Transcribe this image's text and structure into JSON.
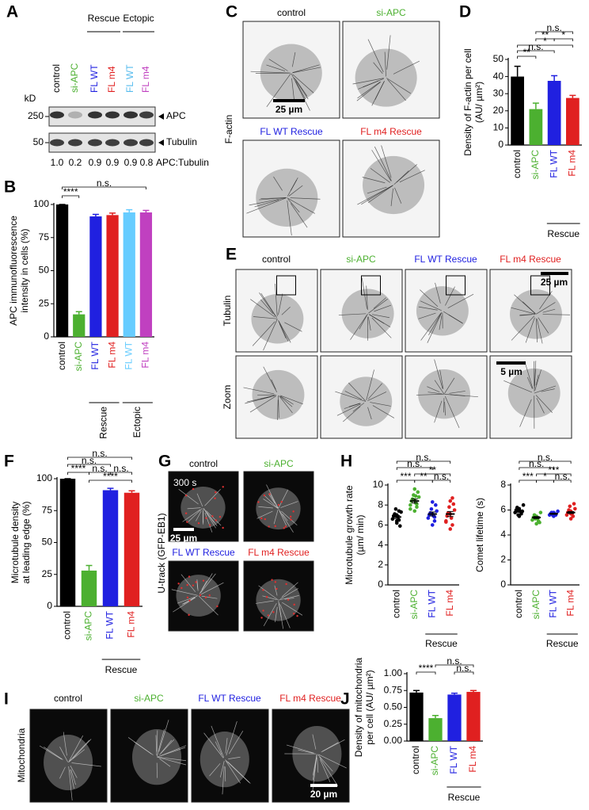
{
  "blot": {
    "panel": "A",
    "lanes": [
      "control",
      "si-APC",
      "FL WT",
      "FL m4",
      "FL WT",
      "FL m4"
    ],
    "lane_colors": [
      "#000000",
      "#4cb030",
      "#2020e0",
      "#e02020",
      "#55bbee",
      "#c040c0"
    ],
    "groups": [
      "Rescue",
      "Ectopic"
    ],
    "unit": "kD",
    "markers": [
      "250",
      "50"
    ],
    "bands": [
      "APC",
      "Tubulin"
    ],
    "ratios": [
      "1.0",
      "0.2",
      "0.9",
      "0.9",
      "0.9",
      "0.8"
    ],
    "ratio_label": "APC:Tubulin"
  },
  "micrographs": [
    {
      "panel": "C",
      "titles": [
        "control",
        "si-APC",
        "FL WT Rescue",
        "FL m4 Rescue"
      ],
      "title_colors": [
        "#000000",
        "#4cb030",
        "#2020e0",
        "#e02020"
      ],
      "row_labels": [
        "F-actin"
      ],
      "scale_bars": [
        "25 µm"
      ]
    },
    {
      "panel": "E",
      "titles": [
        "control",
        "si-APC",
        "FL WT Rescue",
        "FL m4 Rescue"
      ],
      "title_colors": [
        "#000000",
        "#4cb030",
        "#2020e0",
        "#e02020"
      ],
      "row_labels": [
        "Tubulin",
        "Zoom"
      ],
      "scale_bars": [
        "25 µm",
        "5 µm"
      ]
    },
    {
      "panel": "G",
      "titles": [
        "control",
        "si-APC",
        "FL WT Rescue",
        "FL m4 Rescue"
      ],
      "title_colors": [
        "#000000",
        "#4cb030",
        "#2020e0",
        "#e02020"
      ],
      "row_labels": [
        "U-track (GFP-EB1)"
      ],
      "timestamp": "300 s",
      "scale_bars": [
        "25 µm"
      ]
    },
    {
      "panel": "I",
      "titles": [
        "control",
        "si-APC",
        "FL WT Rescue",
        "FL m4 Rescue"
      ],
      "title_colors": [
        "#000000",
        "#4cb030",
        "#2020e0",
        "#e02020"
      ],
      "row_labels": [
        "Mitochondria"
      ],
      "scale_bars": [
        "20 µm"
      ]
    }
  ],
  "chart_data": [
    {
      "panel": "B",
      "type": "bar",
      "ylabel": [
        "APC immunofluorescence",
        "intensity in cells (%)"
      ],
      "categories": [
        "control",
        "si-APC",
        "FL WT",
        "FL m4",
        "FL WT",
        "FL m4"
      ],
      "colors": [
        "#000000",
        "#4cb030",
        "#2020e0",
        "#e02020",
        "#66ccff",
        "#c040c0"
      ],
      "values": [
        100,
        17,
        91,
        92,
        94,
        94
      ],
      "errors": [
        0,
        2,
        1.5,
        1.5,
        2,
        1.5
      ],
      "ylim": [
        0,
        100
      ],
      "yticks": [
        0,
        25,
        50,
        75,
        100
      ],
      "significance": [
        "n.s.",
        "****"
      ],
      "groups": [
        "Rescue",
        "Ectopic"
      ]
    },
    {
      "panel": "D",
      "type": "bar",
      "ylabel": [
        "Density of F-actin per cell",
        "(AU/ µm²)"
      ],
      "categories": [
        "control",
        "si-APC",
        "FL WT",
        "FL m4"
      ],
      "colors": [
        "#000000",
        "#4cb030",
        "#2020e0",
        "#e02020"
      ],
      "values": [
        40,
        21,
        37.5,
        27.5
      ],
      "errors": [
        6,
        3.5,
        3,
        1.5
      ],
      "ylim": [
        0,
        50
      ],
      "yticks": [
        0,
        10,
        20,
        30,
        40,
        50
      ],
      "significance": [
        "n.s.",
        "**",
        "*",
        "*",
        "n.s.",
        "**"
      ],
      "groups": [
        "Rescue"
      ]
    },
    {
      "panel": "F",
      "type": "bar",
      "ylabel": [
        "Microtubule density",
        "at leading edge (%)"
      ],
      "categories": [
        "control",
        "si-APC",
        "FL WT",
        "FL m4"
      ],
      "colors": [
        "#000000",
        "#4cb030",
        "#2020e0",
        "#e02020"
      ],
      "values": [
        100,
        28,
        91,
        89
      ],
      "errors": [
        0,
        4,
        1.5,
        1.5
      ],
      "ylim": [
        0,
        100
      ],
      "yticks": [
        0,
        25,
        50,
        75,
        100
      ],
      "significance": [
        "n.s.",
        "n.s.",
        "****",
        "n.s.",
        "n.s.",
        "****"
      ],
      "groups": [
        "Rescue"
      ]
    },
    {
      "panel": "H",
      "type": "strip",
      "ylabel": [
        "Microtubule growth rate",
        "(µm/ min)"
      ],
      "categories": [
        "control",
        "si-APC",
        "FL WT",
        "FL m4"
      ],
      "colors": [
        "#000000",
        "#4cb030",
        "#2020e0",
        "#e02020"
      ],
      "points": [
        [
          6.2,
          6.5,
          6.6,
          6.8,
          6.9,
          7.0,
          7.1,
          7.3,
          7.6,
          5.9,
          6.4,
          7.4
        ],
        [
          7.4,
          7.8,
          8.0,
          8.2,
          8.4,
          8.5,
          8.6,
          8.8,
          9.0,
          9.3,
          9.6,
          8.1,
          7.6,
          8.9
        ],
        [
          6.0,
          6.4,
          6.7,
          6.9,
          7.0,
          7.1,
          7.2,
          7.4,
          7.6,
          8.0,
          8.3,
          6.8
        ],
        [
          5.6,
          6.0,
          6.4,
          6.7,
          6.9,
          7.1,
          7.2,
          7.5,
          7.8,
          8.1,
          8.4,
          8.7,
          6.3
        ]
      ],
      "means": [
        6.8,
        8.4,
        7.1,
        7.1
      ],
      "errors": [
        0.15,
        0.2,
        0.2,
        0.25
      ],
      "ylim": [
        0,
        10
      ],
      "yticks": [
        0,
        2,
        4,
        6,
        8,
        10
      ],
      "significance": [
        "n.s.",
        "n.s.",
        "**",
        "***",
        "**",
        "n.s."
      ],
      "groups": [
        "Rescue"
      ]
    },
    {
      "type": "strip",
      "ylabel": [
        "Comet lifetime (s)"
      ],
      "categories": [
        "control",
        "si-APC",
        "FL WT",
        "FL m4"
      ],
      "colors": [
        "#000000",
        "#4cb030",
        "#2020e0",
        "#e02020"
      ],
      "points": [
        [
          5.5,
          5.7,
          5.8,
          5.9,
          6.0,
          6.1,
          6.2,
          6.4,
          5.6,
          5.9
        ],
        [
          4.9,
          5.1,
          5.2,
          5.3,
          5.4,
          5.5,
          5.6,
          5.8,
          5.3,
          5.0
        ],
        [
          5.5,
          5.6,
          5.6,
          5.7,
          5.7,
          5.8,
          5.8,
          5.9,
          5.6
        ],
        [
          5.3,
          5.5,
          5.6,
          5.7,
          5.8,
          5.9,
          6.0,
          6.1,
          6.3,
          6.5,
          5.7,
          5.5
        ]
      ],
      "means": [
        5.9,
        5.4,
        5.7,
        5.8
      ],
      "errors": [
        0.08,
        0.08,
        0.05,
        0.08
      ],
      "ylim": [
        0,
        8
      ],
      "yticks": [
        0,
        2,
        4,
        6,
        8
      ],
      "significance": [
        "n.s.",
        "n.s.",
        "***",
        "***",
        "*",
        "n.s."
      ],
      "groups": [
        "Rescue"
      ]
    },
    {
      "panel": "J",
      "type": "bar",
      "ylabel": [
        "Density of mitochondria",
        "per cell (AU/ µm²)"
      ],
      "categories": [
        "control",
        "si-APC",
        "FL WT",
        "FL m4"
      ],
      "colors": [
        "#000000",
        "#4cb030",
        "#2020e0",
        "#e02020"
      ],
      "values": [
        0.72,
        0.34,
        0.69,
        0.73
      ],
      "errors": [
        0.03,
        0.04,
        0.02,
        0.02
      ],
      "ylim": [
        0,
        1
      ],
      "yticks": [
        {
          "value": 0,
          "label": "0.00"
        },
        {
          "value": 0.25,
          "label": "0.25"
        },
        {
          "value": 0.5,
          "label": "0.50"
        },
        {
          "value": 0.75,
          "label": "0.75"
        },
        {
          "value": 1,
          "label": "1.00"
        }
      ],
      "significance": [
        "n.s.",
        "****",
        "n.s."
      ],
      "groups": [
        "Rescue"
      ]
    }
  ]
}
